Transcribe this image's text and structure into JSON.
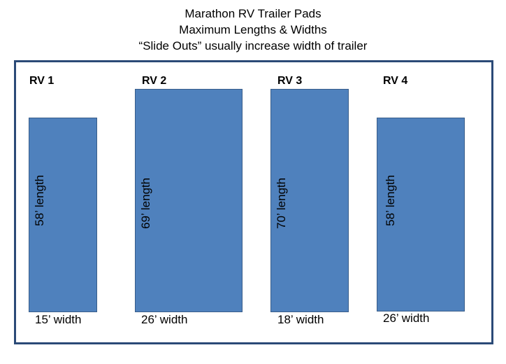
{
  "title": {
    "line1": "Marathon RV Trailer Pads",
    "line2": "Maximum Lengths & Widths",
    "line3": "“Slide Outs” usually increase width of trailer"
  },
  "pads": [
    {
      "label": "RV 1",
      "length_text": "58’ length",
      "width_text": "15’ width",
      "length_ft": 58,
      "width_ft": 15
    },
    {
      "label": "RV 2",
      "length_text": "69’ length",
      "width_text": "26’ width",
      "length_ft": 69,
      "width_ft": 26
    },
    {
      "label": "RV 3",
      "length_text": "70’ length",
      "width_text": "18’ width",
      "length_ft": 70,
      "width_ft": 18
    },
    {
      "label": "RV 4",
      "length_text": "58’ length",
      "width_text": "26’ width",
      "length_ft": 58,
      "width_ft": 26
    }
  ],
  "colors": {
    "pad_fill": "#4f81bd",
    "pad_border": "#385d8a",
    "frame_border": "#2b4a77"
  }
}
